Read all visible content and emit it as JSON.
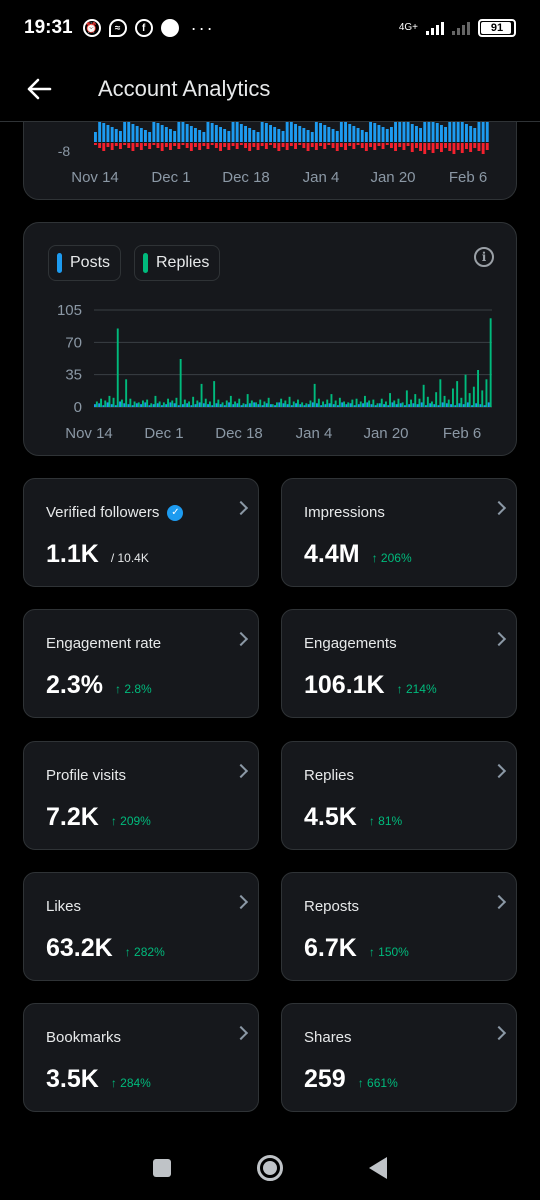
{
  "status_bar": {
    "time": "19:31",
    "network_label": "4G+",
    "battery": "91"
  },
  "header": {
    "title": "Account Analytics",
    "back_icon": "arrow-left-icon"
  },
  "colors": {
    "posts": "#1d9bf0",
    "replies": "#00ba7c",
    "negative": "#f4212e",
    "accent_green": "#00ba7c"
  },
  "top_chart": {
    "y_tick_visible": "-8",
    "x_ticks": [
      "Nov 14",
      "Dec 1",
      "Dec 18",
      "Jan 4",
      "Jan 20",
      "Feb 6"
    ]
  },
  "legend": {
    "posts_label": "Posts",
    "replies_label": "Replies"
  },
  "chart_data": {
    "type": "bar",
    "y_ticks": [
      "105",
      "70",
      "35",
      "0"
    ],
    "ylim": [
      0,
      105
    ],
    "x_ticks": [
      "Nov 14",
      "Dec 1",
      "Dec 18",
      "Jan 4",
      "Jan 20",
      "Feb 6"
    ],
    "series": [
      {
        "name": "Posts",
        "values": [
          3,
          4,
          2,
          5,
          3,
          2,
          6,
          4,
          3,
          2,
          4,
          3,
          5,
          2,
          3,
          4,
          2,
          3,
          5,
          4,
          2,
          3,
          4,
          2,
          3,
          5,
          4,
          3,
          2,
          4,
          3,
          2,
          5,
          3,
          4,
          2,
          3,
          4,
          5,
          3,
          2,
          4,
          3,
          2,
          5,
          4,
          3,
          2,
          4,
          3,
          2,
          3,
          5,
          4,
          2,
          3,
          4,
          3,
          2,
          5,
          3,
          4,
          2,
          3,
          4,
          5,
          3,
          2,
          4,
          3,
          2,
          5,
          3,
          4,
          2,
          3,
          4,
          3,
          5,
          2,
          4,
          3,
          2,
          5,
          4,
          3,
          2,
          4,
          3,
          5,
          2,
          4,
          3,
          2,
          5
        ]
      },
      {
        "name": "Replies",
        "values": [
          6,
          9,
          7,
          12,
          10,
          85,
          8,
          30,
          9,
          6,
          5,
          7,
          8,
          4,
          12,
          6,
          5,
          9,
          7,
          10,
          52,
          8,
          6,
          11,
          7,
          25,
          9,
          6,
          28,
          8,
          5,
          7,
          12,
          6,
          9,
          4,
          14,
          7,
          5,
          8,
          6,
          10,
          3,
          5,
          9,
          7,
          11,
          6,
          8,
          5,
          4,
          7,
          25,
          9,
          6,
          8,
          14,
          7,
          10,
          6,
          5,
          8,
          9,
          6,
          12,
          7,
          8,
          4,
          9,
          6,
          15,
          7,
          9,
          5,
          18,
          8,
          14,
          9,
          24,
          11,
          6,
          16,
          30,
          12,
          8,
          20,
          28,
          10,
          35,
          15,
          22,
          40,
          18,
          30,
          96
        ]
      }
    ]
  },
  "stats": [
    {
      "label": "Verified followers",
      "value": "1.1K",
      "sub": "/ 10.4K",
      "change": "",
      "verified": true
    },
    {
      "label": "Impressions",
      "value": "4.4M",
      "sub": "",
      "change": "↑ 206%"
    },
    {
      "label": "Engagement rate",
      "value": "2.3%",
      "sub": "",
      "change": "↑ 2.8%"
    },
    {
      "label": "Engagements",
      "value": "106.1K",
      "sub": "",
      "change": "↑ 214%"
    },
    {
      "label": "Profile visits",
      "value": "7.2K",
      "sub": "",
      "change": "↑ 209%"
    },
    {
      "label": "Replies",
      "value": "4.5K",
      "sub": "",
      "change": "↑ 81%"
    },
    {
      "label": "Likes",
      "value": "63.2K",
      "sub": "",
      "change": "↑ 282%"
    },
    {
      "label": "Reposts",
      "value": "6.7K",
      "sub": "",
      "change": "↑ 150%"
    },
    {
      "label": "Bookmarks",
      "value": "3.5K",
      "sub": "",
      "change": "↑ 284%"
    },
    {
      "label": "Shares",
      "value": "259",
      "sub": "",
      "change": "↑ 661%"
    }
  ]
}
